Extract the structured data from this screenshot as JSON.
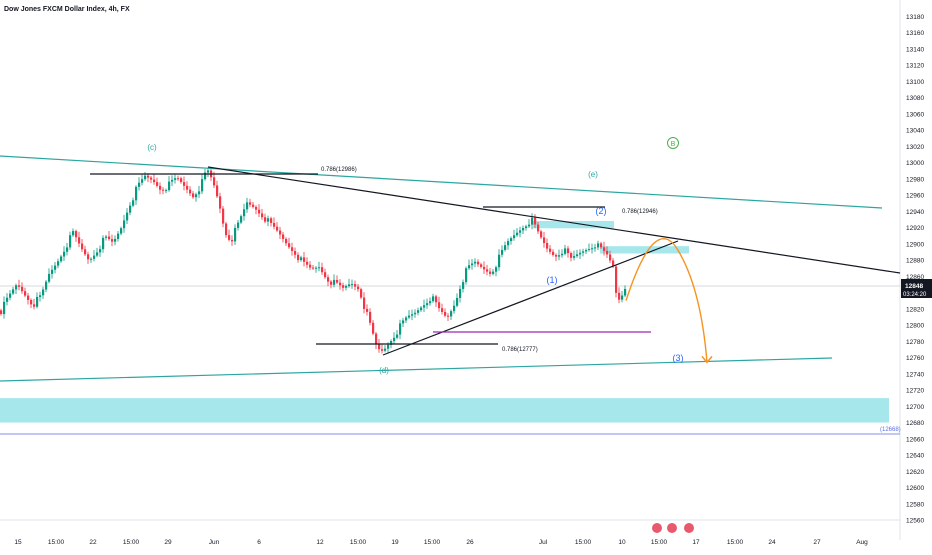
{
  "header": {
    "title": "Dow Jones FXCM Dollar Index, 4h, FX"
  },
  "price_tag": {
    "price": "12848",
    "countdown": "03:24:20"
  },
  "chart_data": {
    "type": "candlestick",
    "title": "Dow Jones FXCM Dollar Index, 4h, FX",
    "ylim": [
      12550,
      13190
    ],
    "y_ticks": [
      13180,
      13160,
      13140,
      13120,
      13100,
      13080,
      13060,
      13040,
      13020,
      13000,
      12980,
      12960,
      12940,
      12920,
      12900,
      12880,
      12860,
      12840,
      12820,
      12800,
      12780,
      12760,
      12740,
      12720,
      12700,
      12680,
      12660,
      12640,
      12620,
      12600,
      12580,
      12560
    ],
    "x_ticks": [
      "15",
      "15:00",
      "22",
      "15:00",
      "29",
      "Jun",
      "6",
      "12",
      "15:00",
      "19",
      "15:00",
      "26",
      "Jul",
      "15:00",
      "10",
      "15:00",
      "17",
      "15:00",
      "24",
      "27",
      "Aug"
    ],
    "current_price": 12848,
    "levels": [
      {
        "label": "0.786(12986)",
        "value": 12986
      },
      {
        "label": "0.786(12946)",
        "value": 12946
      },
      {
        "label": "0.786(12777)",
        "value": 12777
      },
      {
        "label": "(12668)",
        "value": 12668
      }
    ],
    "wave_labels": [
      "(c)",
      "(d)",
      "(e)",
      "(1)",
      "(2)",
      "(3)",
      "B"
    ],
    "zones": [
      {
        "name": "support-zone",
        "from": 12680,
        "to": 12710
      },
      {
        "name": "resistance-zone-upper",
        "from": 12919,
        "to": 12928
      },
      {
        "name": "resistance-zone-lower",
        "from": 12888,
        "to": 12897
      }
    ],
    "close_path": [
      [
        0,
        12818
      ],
      [
        8,
        12834
      ],
      [
        16,
        12850
      ],
      [
        24,
        12838
      ],
      [
        32,
        12826
      ],
      [
        40,
        12834
      ],
      [
        48,
        12862
      ],
      [
        56,
        12878
      ],
      [
        64,
        12896
      ],
      [
        72,
        12912
      ],
      [
        80,
        12894
      ],
      [
        88,
        12880
      ],
      [
        96,
        12893
      ],
      [
        104,
        12906
      ],
      [
        112,
        12900
      ],
      [
        120,
        12920
      ],
      [
        128,
        12948
      ],
      [
        136,
        12968
      ],
      [
        144,
        12982
      ],
      [
        152,
        12978
      ],
      [
        160,
        12968
      ],
      [
        168,
        12972
      ],
      [
        176,
        12980
      ],
      [
        184,
        12970
      ],
      [
        192,
        12960
      ],
      [
        200,
        12972
      ],
      [
        206,
        12990
      ],
      [
        212,
        12975
      ],
      [
        218,
        12950
      ],
      [
        224,
        12915
      ],
      [
        230,
        12905
      ],
      [
        238,
        12925
      ],
      [
        246,
        12950
      ],
      [
        254,
        12945
      ],
      [
        262,
        12935
      ],
      [
        270,
        12922
      ],
      [
        278,
        12912
      ],
      [
        286,
        12900
      ],
      [
        294,
        12890
      ],
      [
        302,
        12875
      ],
      [
        310,
        12868
      ],
      [
        318,
        12872
      ],
      [
        326,
        12858
      ],
      [
        334,
        12850
      ],
      [
        342,
        12844
      ],
      [
        350,
        12852
      ],
      [
        358,
        12846
      ],
      [
        364,
        12820
      ],
      [
        370,
        12795
      ],
      [
        376,
        12770
      ],
      [
        382,
        12768
      ],
      [
        390,
        12783
      ],
      [
        398,
        12796
      ],
      [
        406,
        12808
      ],
      [
        414,
        12815
      ],
      [
        422,
        12826
      ],
      [
        430,
        12835
      ],
      [
        438,
        12818
      ],
      [
        446,
        12808
      ],
      [
        454,
        12828
      ],
      [
        460,
        12852
      ],
      [
        466,
        12868
      ],
      [
        474,
        12876
      ],
      [
        482,
        12870
      ],
      [
        490,
        12865
      ],
      [
        498,
        12882
      ],
      [
        506,
        12900
      ],
      [
        514,
        12912
      ],
      [
        522,
        12922
      ],
      [
        530,
        12930
      ],
      [
        538,
        12910
      ],
      [
        546,
        12894
      ],
      [
        554,
        12886
      ],
      [
        562,
        12893
      ],
      [
        570,
        12880
      ],
      [
        578,
        12888
      ],
      [
        586,
        12895
      ],
      [
        594,
        12900
      ],
      [
        600,
        12892
      ],
      [
        606,
        12885
      ],
      [
        612,
        12872
      ],
      [
        616,
        12830
      ],
      [
        620,
        12836
      ],
      [
        624,
        12848
      ]
    ],
    "projection": [
      [
        626,
        12830
      ],
      [
        655,
        12890
      ],
      [
        678,
        12892
      ],
      [
        707,
        12754
      ]
    ]
  }
}
